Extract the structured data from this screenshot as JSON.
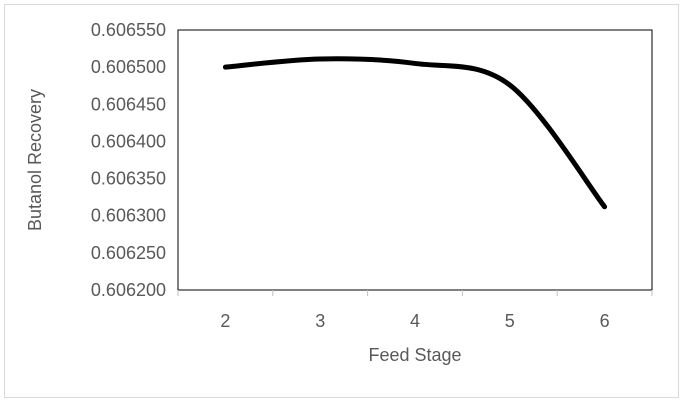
{
  "chart_data": {
    "type": "line",
    "title": "",
    "xlabel": "Feed Stage",
    "ylabel": "Butanol Recovery",
    "categories": [
      "2",
      "3",
      "4",
      "5",
      "6"
    ],
    "x": [
      2,
      3,
      4,
      5,
      6
    ],
    "series": [
      {
        "values": [
          0.6065,
          0.606511,
          0.606505,
          0.606476,
          0.606312
        ],
        "color": "#000000"
      }
    ],
    "ylim": [
      0.6062,
      0.60655
    ],
    "yticks": [
      "0.606200",
      "0.606250",
      "0.606300",
      "0.606350",
      "0.606400",
      "0.606450",
      "0.606500",
      "0.606550"
    ],
    "grid": false,
    "legend": "none",
    "smooth": true
  }
}
